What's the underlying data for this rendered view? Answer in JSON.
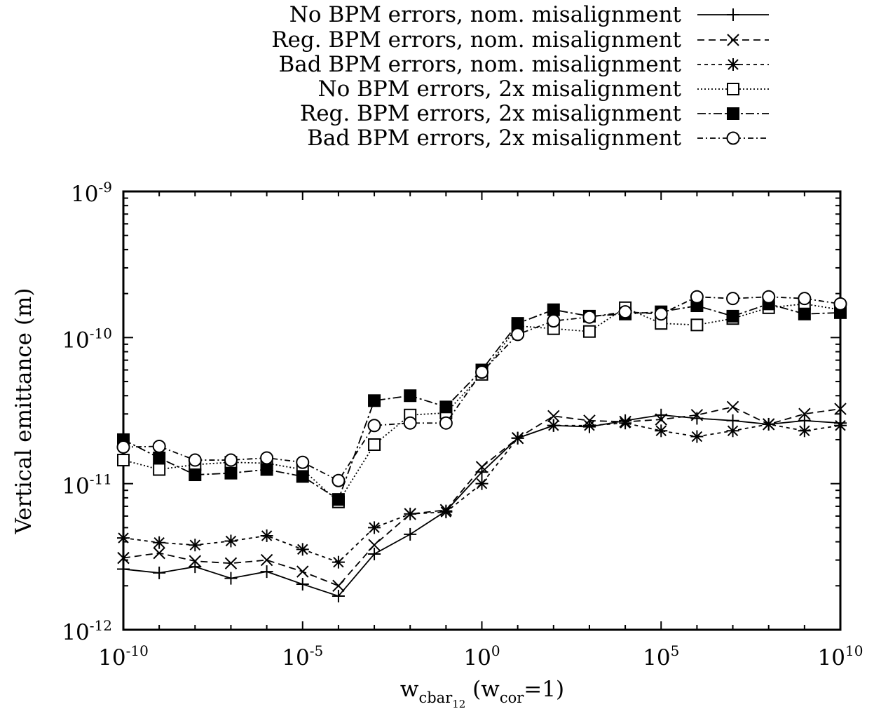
{
  "chart_data": {
    "type": "line",
    "xscale": "log",
    "yscale": "log",
    "xlim": [
      1e-10,
      10000000000.0
    ],
    "ylim": [
      1e-12,
      1e-09
    ],
    "xlabel": {
      "base": "w",
      "sub": "cbar",
      "subsub": "12",
      "rest": " (w",
      "sub2": "cor",
      "tail": "=1)"
    },
    "ylabel": "Vertical emittance (m)",
    "x_ticks": [
      {
        "value": 1e-10,
        "base": "10",
        "exp": "-10"
      },
      {
        "value": 1e-05,
        "base": "10",
        "exp": "-5"
      },
      {
        "value": 1,
        "base": "10",
        "exp": "0"
      },
      {
        "value": 100000.0,
        "base": "10",
        "exp": "5"
      },
      {
        "value": 10000000000.0,
        "base": "10",
        "exp": "10"
      }
    ],
    "y_ticks": [
      {
        "value": 1e-12,
        "base": "10",
        "exp": "-12"
      },
      {
        "value": 1e-11,
        "base": "10",
        "exp": "-11"
      },
      {
        "value": 1e-10,
        "base": "10",
        "exp": "-10"
      },
      {
        "value": 1e-09,
        "base": "10",
        "exp": "-9"
      }
    ],
    "grid": false,
    "legend_position": "top-right, above plot",
    "x": [
      1e-10,
      1e-09,
      1e-08,
      1e-07,
      1e-06,
      1e-05,
      0.0001,
      0.001,
      0.01,
      0.1,
      1,
      10.0,
      100.0,
      1000.0,
      10000.0,
      100000.0,
      1000000.0,
      10000000.0,
      100000000.0,
      1000000000.0,
      10000000000.0
    ],
    "series": [
      {
        "name": "No BPM errors, nom. misalignment",
        "marker": "plus",
        "dash": "",
        "values": [
          2.6e-12,
          2.45e-12,
          2.7e-12,
          2.25e-12,
          2.5e-12,
          2.05e-12,
          1.7e-12,
          3.3e-12,
          4.5e-12,
          6.5e-12,
          1.2e-11,
          2.05e-11,
          2.5e-11,
          2.45e-11,
          2.7e-11,
          2.95e-11,
          2.8e-11,
          2.7e-11,
          2.55e-11,
          2.7e-11,
          2.6e-11
        ]
      },
      {
        "name": "Reg. BPM errors, nom. misalignment",
        "marker": "x",
        "dash": "10,6",
        "values": [
          3.1e-12,
          3.35e-12,
          2.95e-12,
          2.85e-12,
          3e-12,
          2.5e-12,
          2e-12,
          3.8e-12,
          6.2e-12,
          6.6e-12,
          1.3e-11,
          2.05e-11,
          2.9e-11,
          2.7e-11,
          2.65e-11,
          2.75e-11,
          2.95e-11,
          3.35e-11,
          2.55e-11,
          3e-11,
          3.25e-11
        ]
      },
      {
        "name": "Bad BPM errors, nom. misalignment",
        "marker": "star",
        "dash": "5,5",
        "values": [
          4.25e-12,
          3.95e-12,
          3.8e-12,
          4.05e-12,
          4.4e-12,
          3.55e-12,
          2.9e-12,
          5e-12,
          6.2e-12,
          6.4e-12,
          1e-11,
          2.05e-11,
          2.5e-11,
          2.5e-11,
          2.6e-11,
          2.3e-11,
          2.1e-11,
          2.3e-11,
          2.55e-11,
          2.3e-11,
          2.5e-11
        ]
      },
      {
        "name": "No BPM errors, 2x misalignment",
        "marker": "square-open",
        "dash": "2,3",
        "values": [
          1.45e-11,
          1.25e-11,
          1.35e-11,
          1.4e-11,
          1.38e-11,
          1.25e-11,
          7.5e-12,
          1.85e-11,
          2.95e-11,
          3.05e-11,
          5.6e-11,
          1.2e-10,
          1.15e-10,
          1.1e-10,
          1.6e-10,
          1.25e-10,
          1.22e-10,
          1.35e-10,
          1.6e-10,
          1.7e-10,
          1.55e-10
        ]
      },
      {
        "name": "Reg. BPM errors, 2x misalignment",
        "marker": "square-filled",
        "dash": "12,4,3,4",
        "values": [
          2e-11,
          1.5e-11,
          1.15e-11,
          1.18e-11,
          1.25e-11,
          1.12e-11,
          7.8e-12,
          3.7e-11,
          4e-11,
          3.35e-11,
          6e-11,
          1.25e-10,
          1.55e-10,
          1.4e-10,
          1.45e-10,
          1.5e-10,
          1.65e-10,
          1.4e-10,
          1.7e-10,
          1.45e-10,
          1.48e-10
        ]
      },
      {
        "name": "Bad BPM errors, 2x misalignment",
        "marker": "circle-open",
        "dash": "8,4,2,4",
        "values": [
          1.78e-11,
          1.8e-11,
          1.45e-11,
          1.45e-11,
          1.5e-11,
          1.4e-11,
          1.05e-11,
          2.5e-11,
          2.6e-11,
          2.6e-11,
          5.8e-11,
          1.05e-10,
          1.3e-10,
          1.38e-10,
          1.5e-10,
          1.45e-10,
          1.9e-10,
          1.85e-10,
          1.9e-10,
          1.85e-10,
          1.7e-10
        ]
      }
    ]
  }
}
